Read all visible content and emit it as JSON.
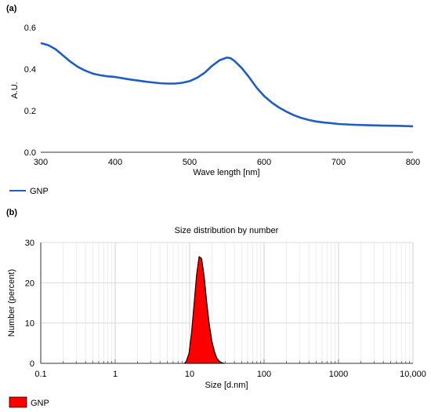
{
  "chart_data": [
    {
      "panel_label": "(a)",
      "type": "line",
      "title": "",
      "xlabel": "Wave length [nm]",
      "ylabel": "A.U.",
      "xlim": [
        300,
        800
      ],
      "ylim": [
        0,
        0.6
      ],
      "x_ticks": [
        "300",
        "400",
        "500",
        "600",
        "700",
        "800"
      ],
      "y_ticks": [
        "0.0",
        "0.2",
        "0.4",
        "0.6"
      ],
      "grid": false,
      "legend_position": "bottom-left",
      "colors": {
        "line": "#1f5cc4"
      },
      "series": [
        {
          "name": "GNP",
          "x": [
            300,
            310,
            320,
            330,
            340,
            350,
            360,
            370,
            380,
            390,
            400,
            410,
            420,
            430,
            440,
            450,
            460,
            470,
            480,
            490,
            500,
            510,
            520,
            530,
            540,
            550,
            555,
            560,
            570,
            580,
            590,
            600,
            610,
            620,
            630,
            640,
            650,
            660,
            670,
            680,
            690,
            700,
            720,
            740,
            760,
            780,
            800
          ],
          "y": [
            0.525,
            0.515,
            0.495,
            0.465,
            0.435,
            0.41,
            0.392,
            0.378,
            0.37,
            0.365,
            0.362,
            0.356,
            0.35,
            0.345,
            0.34,
            0.336,
            0.332,
            0.33,
            0.33,
            0.334,
            0.342,
            0.358,
            0.382,
            0.415,
            0.442,
            0.455,
            0.452,
            0.44,
            0.405,
            0.36,
            0.31,
            0.27,
            0.24,
            0.215,
            0.195,
            0.178,
            0.165,
            0.155,
            0.148,
            0.143,
            0.14,
            0.136,
            0.132,
            0.13,
            0.128,
            0.127,
            0.125
          ]
        }
      ]
    },
    {
      "panel_label": "(b)",
      "type": "area",
      "title": "Size distribution by number",
      "xlabel": "Size [d.nm]",
      "ylabel": "Number (percent)",
      "x_scale": "log",
      "xlim": [
        0.1,
        10000
      ],
      "ylim": [
        0,
        30
      ],
      "x_ticks": [
        "0.1",
        "1",
        "10",
        "100",
        "1000",
        "10,000"
      ],
      "y_ticks": [
        "0",
        "10",
        "20",
        "30"
      ],
      "grid": true,
      "legend_position": "bottom-left",
      "colors": {
        "fill": "#ff0000",
        "edge": "#000000"
      },
      "series": [
        {
          "name": "GNP",
          "x": [
            8.5,
            9.0,
            9.8,
            10.6,
            11.5,
            12.4,
            13.4,
            14.5,
            15.7,
            17.0,
            18.4,
            19.9,
            21.5,
            23.2,
            25.1,
            27.1,
            29.3
          ],
          "y": [
            0,
            0.5,
            2.5,
            7.5,
            15,
            22,
            26.5,
            26.0,
            21.5,
            15,
            9.5,
            5.5,
            3,
            1.3,
            0.5,
            0.15,
            0
          ]
        }
      ]
    }
  ]
}
